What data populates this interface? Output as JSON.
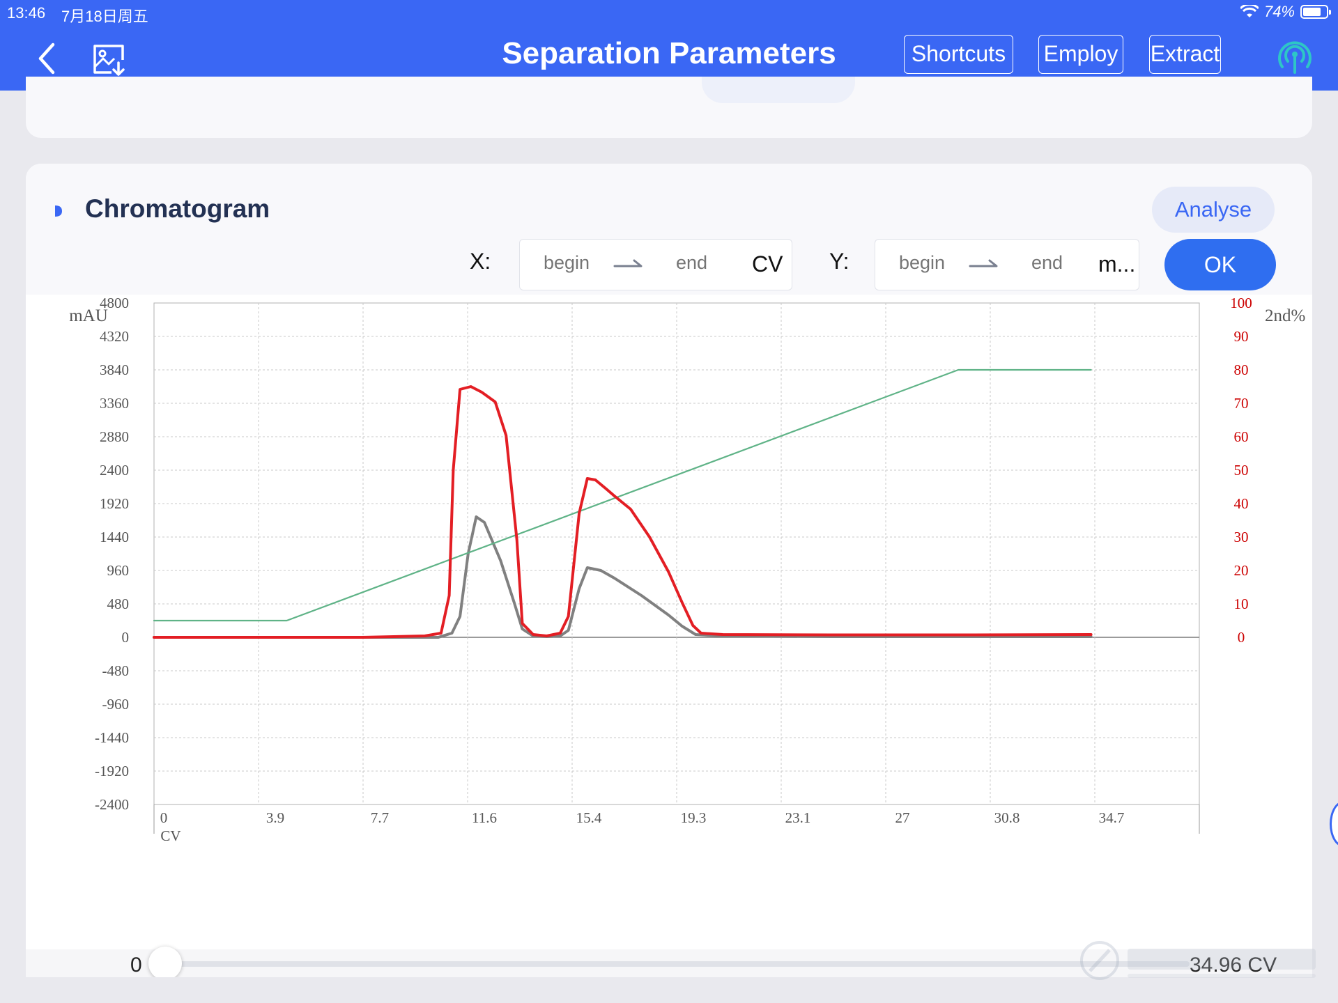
{
  "status_bar": {
    "time": "13:46",
    "date": "7月18日周五",
    "battery": "74%",
    "battery_fraction": 0.74
  },
  "nav": {
    "title": "Separation Parameters",
    "buttons": {
      "shortcuts": "Shortcuts",
      "employ": "Employ",
      "extract": "Extract"
    }
  },
  "card": {
    "title": "Chromatogram",
    "analyse": "Analyse",
    "x_range": {
      "label": "X:",
      "begin_placeholder": "begin",
      "end_placeholder": "end",
      "unit": "CV"
    },
    "y_range": {
      "label": "Y:",
      "begin_placeholder": "begin",
      "end_placeholder": "end",
      "unit": "m..."
    },
    "ok": "OK"
  },
  "slider": {
    "min": "0",
    "max": "34.96 CV",
    "value": 0
  },
  "colors": {
    "accent": "#3a67f4",
    "uv_trace": "#e31e24",
    "uv_trace_2": "#808080",
    "gradient": "#5fb387",
    "secondary_axis": "#cc0000"
  },
  "chart_data": {
    "type": "line",
    "y_left_label": "mAU",
    "y_right_label": "2nd%",
    "x_unit_label": "CV",
    "x_ticks": [
      "0",
      "3.9",
      "7.7",
      "11.6",
      "15.4",
      "19.3",
      "23.1",
      "27",
      "30.8",
      "34.7"
    ],
    "y_left_ticks": [
      "4800",
      "4320",
      "3840",
      "3360",
      "2880",
      "2400",
      "1920",
      "1440",
      "960",
      "480",
      "0",
      "-480",
      "-960",
      "-1440",
      "-1920",
      "-2400"
    ],
    "y_right_ticks": [
      "100",
      "90",
      "80",
      "70",
      "60",
      "50",
      "40",
      "30",
      "20",
      "10",
      "0"
    ],
    "xlim": [
      0,
      38.6
    ],
    "ylim": [
      -2400,
      4800
    ],
    "y2lim": [
      0,
      100
    ],
    "grid": true,
    "series": [
      {
        "axis": "left",
        "x": [
          0,
          7.7,
          10,
          10.6,
          10.9,
          11.05,
          11.3,
          11.7,
          12.1,
          12.6,
          13.0,
          13.4,
          13.6,
          14.0,
          14.5,
          15.0,
          15.3,
          15.7,
          16.0,
          16.3,
          16.7,
          17.0,
          17.6,
          18.3,
          19.0,
          19.5,
          19.9,
          20.2,
          20.6,
          21,
          25,
          30,
          34.6
        ],
        "y": [
          0,
          0,
          20,
          60,
          600,
          2400,
          3560,
          3600,
          3520,
          3380,
          2900,
          1400,
          200,
          40,
          20,
          60,
          300,
          1780,
          2280,
          2260,
          2130,
          2030,
          1840,
          1440,
          940,
          500,
          170,
          60,
          50,
          40,
          35,
          35,
          40
        ]
      },
      {
        "axis": "left",
        "x": [
          0,
          10.5,
          11.0,
          11.3,
          11.6,
          11.9,
          12.2,
          12.8,
          13.3,
          13.6,
          14.0,
          14.5,
          15.0,
          15.3,
          15.7,
          16.0,
          16.5,
          17.0,
          18.0,
          19.0,
          19.5,
          20.0,
          21,
          25,
          30,
          34.6
        ],
        "y": [
          0,
          0,
          60,
          300,
          1200,
          1730,
          1650,
          1100,
          500,
          120,
          20,
          10,
          20,
          100,
          700,
          1000,
          960,
          850,
          600,
          320,
          160,
          40,
          20,
          10,
          10,
          10
        ]
      },
      {
        "axis": "right",
        "x": [
          0,
          4.9,
          29.7,
          34.6
        ],
        "y": [
          5,
          5,
          80,
          80
        ]
      }
    ]
  }
}
